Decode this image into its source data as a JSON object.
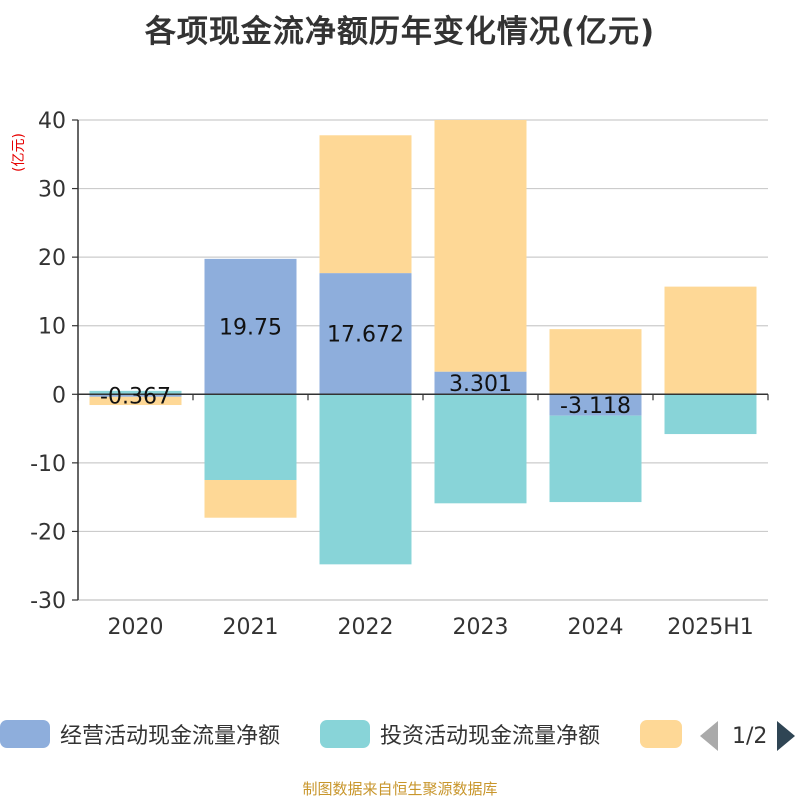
{
  "title": "各项现金流净额历年变化情况(亿元)",
  "unit_label": "(亿元)",
  "source": "制图数据来自恒生聚源数据库",
  "legend": {
    "items": [
      {
        "label": "经营活动现金流量净额",
        "color": "#8eaedc"
      },
      {
        "label": "投资活动现金流量净额",
        "color": "#88d4d8"
      },
      {
        "label": "",
        "color": "#fed896"
      }
    ],
    "page": "1/2"
  },
  "chart_data": {
    "type": "bar",
    "stacked": true,
    "categories": [
      "2020",
      "2021",
      "2022",
      "2023",
      "2024",
      "2025H1"
    ],
    "ylim": [
      -30,
      40
    ],
    "yticks": [
      40,
      30,
      20,
      10,
      0,
      -10,
      -20,
      -30
    ],
    "grid": true,
    "series": [
      {
        "name": "经营活动现金流量净额",
        "color": "#8eaedc",
        "values": [
          -0.367,
          19.75,
          17.672,
          3.301,
          -3.118,
          0.0
        ],
        "labels": [
          "-0.367",
          "19.75",
          "17.672",
          "3.301",
          "-3.118",
          ""
        ]
      },
      {
        "name": "投资活动现金流量净额",
        "color": "#88d4d8",
        "values": [
          0.5,
          -12.5,
          -24.8,
          -15.9,
          -12.6,
          -5.8
        ]
      },
      {
        "name": "",
        "color": "#fed896",
        "values": [
          -1.2,
          -5.5,
          20.1,
          36.7,
          9.5,
          15.7
        ]
      }
    ]
  }
}
